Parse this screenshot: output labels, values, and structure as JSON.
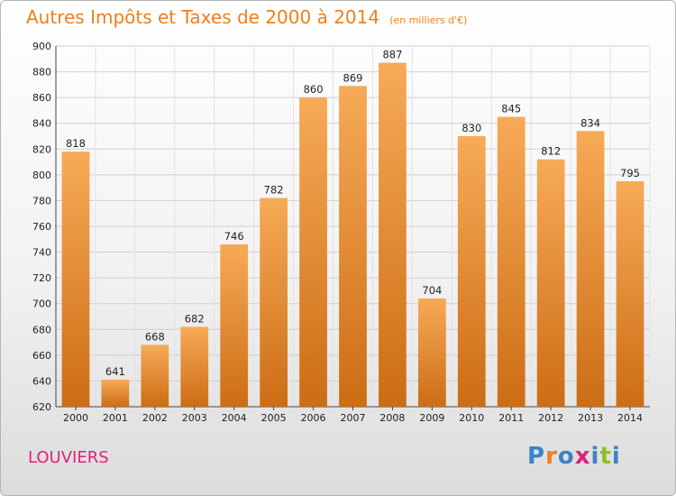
{
  "header": {
    "title": "Autres Impôts et Taxes de 2000 à 2014",
    "unit": "(en milliers d'€)"
  },
  "footer": {
    "city": "LOUVIERS",
    "logo_letters": [
      "P",
      "r",
      "o",
      "x",
      "i",
      "t",
      "i"
    ],
    "logo_colors": [
      "#3b83c7",
      "#ef7f1a",
      "#3b83c7",
      "#e0207d",
      "#3b83c7",
      "#8cbf26",
      "#3b83c7"
    ]
  },
  "colors": {
    "title": "#ef7f1a",
    "city": "#e0207d",
    "bar_light": "#f7aa57",
    "bar_dark": "#cc6d14",
    "grid": "#d0d0d0"
  },
  "chart_data": {
    "type": "bar",
    "title": "Autres Impôts et Taxes de 2000 à 2014",
    "subtitle": "(en milliers d'€)",
    "categories": [
      "2000",
      "2001",
      "2002",
      "2003",
      "2004",
      "2005",
      "2006",
      "2007",
      "2008",
      "2009",
      "2010",
      "2011",
      "2012",
      "2013",
      "2014"
    ],
    "values": [
      818,
      641,
      668,
      682,
      746,
      782,
      860,
      869,
      887,
      704,
      830,
      845,
      812,
      834,
      795
    ],
    "ylim": [
      620,
      900
    ],
    "yticks": [
      620,
      640,
      660,
      680,
      700,
      720,
      740,
      760,
      780,
      800,
      820,
      840,
      860,
      880,
      900
    ],
    "grid": true,
    "xlabel": "",
    "ylabel": ""
  }
}
